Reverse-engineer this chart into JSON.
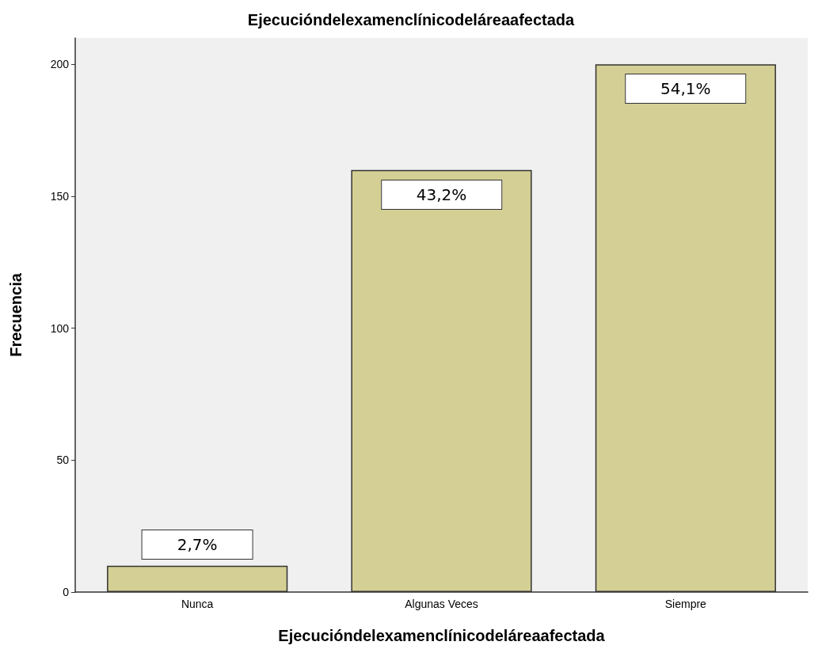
{
  "chart_data": {
    "type": "bar",
    "title": "Ejecucióndelexamenclínicodeláreaafectada",
    "xlabel": "Ejecucióndelexamenclínicodeláreaafectada",
    "ylabel": "Frecuencia",
    "categories": [
      "Nunca",
      "Algunas Veces",
      "Siempre"
    ],
    "values": [
      10,
      160,
      200
    ],
    "annotations": [
      {
        "text": "2,7%",
        "x": "Nunca",
        "y": 10
      },
      {
        "text": "43,2%",
        "x": "Algunas Veces",
        "y": 160
      },
      {
        "text": "54,1%",
        "x": "Siempre",
        "y": 200
      }
    ],
    "color": "#d4cf94",
    "ylim": [
      0,
      210
    ],
    "yticks": [
      0,
      50,
      100,
      150,
      200
    ],
    "grid": false
  }
}
